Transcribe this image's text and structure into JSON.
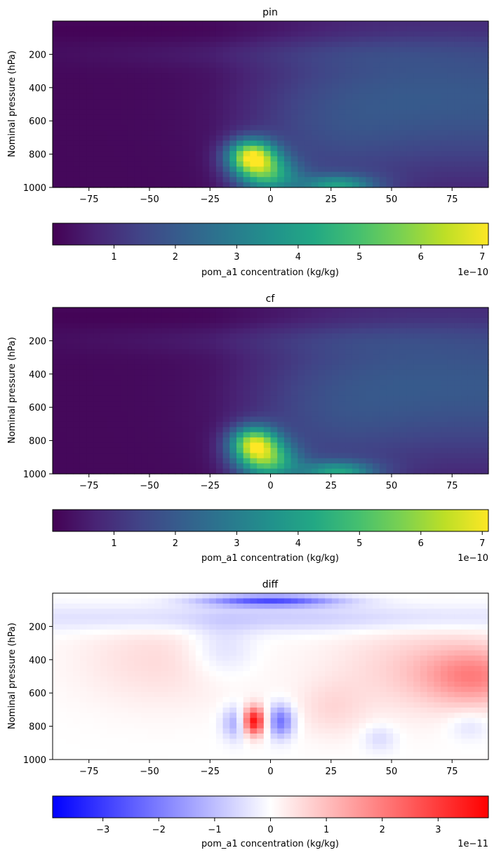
{
  "figure": {
    "panels": [
      {
        "title": "pin",
        "ylabel": "Nominal pressure (hPa)",
        "colorbar": {
          "label": "pom_a1 concentration (kg/kg)",
          "offset": "1e−10"
        }
      },
      {
        "title": "cf",
        "ylabel": "Nominal pressure (hPa)",
        "colorbar": {
          "label": "pom_a1 concentration (kg/kg)",
          "offset": "1e−10"
        }
      },
      {
        "title": "diff",
        "ylabel": "Nominal pressure (hPa)",
        "colorbar": {
          "label": "pom_a1 concentration (kg/kg)",
          "offset": "1e−11"
        }
      }
    ]
  },
  "chart_data": [
    {
      "type": "heatmap",
      "title": "pin",
      "xlabel": "",
      "ylabel": "Nominal pressure (hPa)",
      "xlim": [
        -90,
        90
      ],
      "ylim": [
        1000,
        0
      ],
      "xticks": [
        -75,
        -50,
        -25,
        0,
        25,
        50,
        75
      ],
      "yticks": [
        200,
        400,
        600,
        800,
        1000
      ],
      "colormap": "viridis",
      "color_range": [
        0,
        7.1e-10
      ],
      "colorbar_ticks": [
        1,
        2,
        3,
        4,
        5,
        6,
        7
      ],
      "colorbar_scale": "1e-10",
      "colorbar_label": "pom_a1 concentration (kg/kg)",
      "features": [
        {
          "lat": -7,
          "p": 810,
          "value": 7e-10
        },
        {
          "lat": -2,
          "p": 920,
          "value": 6e-10
        },
        {
          "lat": 28,
          "p": 990,
          "value": 4e-10
        },
        {
          "lat": 40,
          "p": 400,
          "value": 1.8e-10
        },
        {
          "lat": -70,
          "p": 700,
          "value": 5e-12
        }
      ]
    },
    {
      "type": "heatmap",
      "title": "cf",
      "xlabel": "",
      "ylabel": "Nominal pressure (hPa)",
      "xlim": [
        -90,
        90
      ],
      "ylim": [
        1000,
        0
      ],
      "xticks": [
        -75,
        -50,
        -25,
        0,
        25,
        50,
        75
      ],
      "yticks": [
        200,
        400,
        600,
        800,
        1000
      ],
      "colormap": "viridis",
      "color_range": [
        0,
        7.1e-10
      ],
      "colorbar_ticks": [
        1,
        2,
        3,
        4,
        5,
        6,
        7
      ],
      "colorbar_scale": "1e-10",
      "colorbar_label": "pom_a1 concentration (kg/kg)",
      "features": [
        {
          "lat": -7,
          "p": 810,
          "value": 6.2e-10
        },
        {
          "lat": -2,
          "p": 920,
          "value": 6.3e-10
        },
        {
          "lat": 28,
          "p": 990,
          "value": 4.2e-10
        },
        {
          "lat": 40,
          "p": 400,
          "value": 1.7e-10
        },
        {
          "lat": -70,
          "p": 700,
          "value": 5e-12
        }
      ]
    },
    {
      "type": "heatmap",
      "title": "diff",
      "xlabel": "",
      "ylabel": "Nominal pressure (hPa)",
      "xlim": [
        -90,
        90
      ],
      "ylim": [
        1000,
        0
      ],
      "xticks": [
        -75,
        -50,
        -25,
        0,
        25,
        50,
        75
      ],
      "yticks": [
        200,
        400,
        600,
        800,
        1000
      ],
      "colormap": "bwr",
      "color_range": [
        -3.9e-11,
        3.9e-11
      ],
      "colorbar_ticks": [
        -3,
        -2,
        -1,
        0,
        1,
        2,
        3
      ],
      "colorbar_scale": "1e-11",
      "colorbar_label": "pom_a1 concentration (kg/kg)",
      "features": [
        {
          "lat": -7,
          "p": 770,
          "value": 3.9e-11
        },
        {
          "lat": 4,
          "p": 770,
          "value": -2.2e-11
        },
        {
          "lat": -15,
          "p": 780,
          "value": -1.5e-11
        },
        {
          "lat": 0,
          "p": 50,
          "value": -2.5e-11
        },
        {
          "lat": 80,
          "p": 500,
          "value": 1.5e-11
        },
        {
          "lat": -45,
          "p": 380,
          "value": 5e-12
        },
        {
          "lat": -20,
          "p": 330,
          "value": -7e-12
        }
      ]
    }
  ]
}
